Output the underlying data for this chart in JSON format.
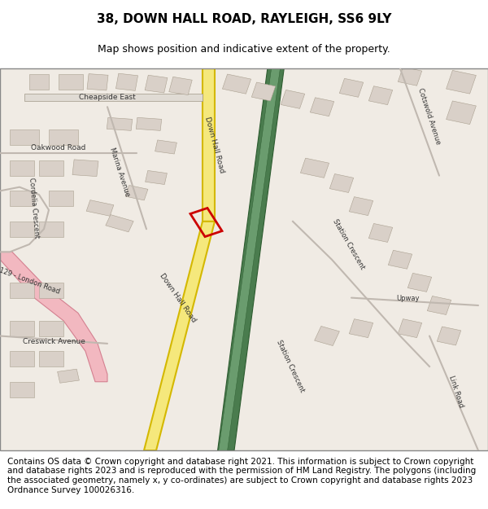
{
  "title": "38, DOWN HALL ROAD, RAYLEIGH, SS6 9LY",
  "subtitle": "Map shows position and indicative extent of the property.",
  "footer": "Contains OS data © Crown copyright and database right 2021. This information is subject to Crown copyright and database rights 2023 and is reproduced with the permission of HM Land Registry. The polygons (including the associated geometry, namely x, y co-ordinates) are subject to Crown copyright and database rights 2023 Ordnance Survey 100026316.",
  "map_bg": "#f0ebe4",
  "road_yellow": "#f5e87c",
  "road_yellow_border": "#d4b800",
  "road_pink": "#f2b8c0",
  "road_pink_border": "#d48090",
  "railway_green": "#4a7c4e",
  "railway_dark": "#2d5c30",
  "railway_light": "#6a9c6e",
  "building_fill": "#d9d0c8",
  "building_edge": "#aaa090",
  "road_grey": "#c0b8b0",
  "road_grey_dark": "#a09888",
  "property_color": "#cc0000",
  "title_fontsize": 11,
  "subtitle_fontsize": 9,
  "footer_fontsize": 7.5,
  "label_color": "#333333",
  "label_fontsize": 6.5,
  "label_fontsize_small": 6.0
}
